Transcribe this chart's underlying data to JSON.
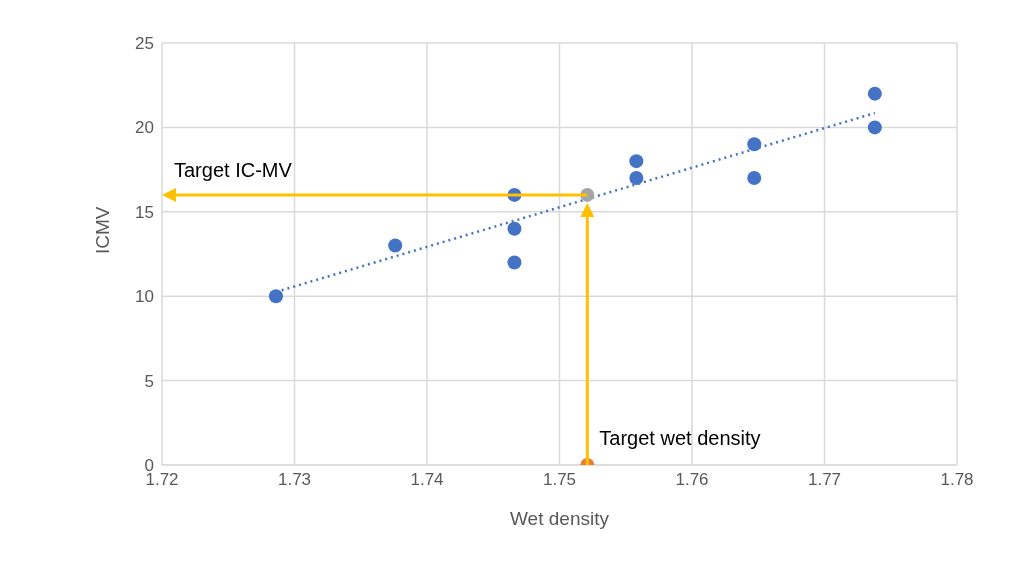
{
  "chart_data": {
    "type": "scatter",
    "xlabel": "Wet density",
    "ylabel": "ICMV",
    "xlim": [
      1.72,
      1.78
    ],
    "xticks": [
      1.72,
      1.73,
      1.74,
      1.75,
      1.76,
      1.77,
      1.78
    ],
    "ylim": [
      0,
      25
    ],
    "yticks": [
      0,
      5,
      10,
      15,
      20,
      25
    ],
    "grid": true,
    "marker": "circle",
    "series": [
      {
        "color": "#4472c4",
        "x": [
          1.7286,
          1.7376,
          1.7466,
          1.7466,
          1.7466,
          1.7558,
          1.7558,
          1.7647,
          1.7647,
          1.7738,
          1.7738
        ],
        "values": [
          10,
          13,
          16,
          14,
          12,
          18,
          17,
          19,
          17,
          22,
          20
        ]
      },
      {
        "color": "#a5a5a5",
        "x": [
          1.7521
        ],
        "values": [
          16
        ]
      },
      {
        "color": "#ed7d31",
        "x": [
          1.7521
        ],
        "values": [
          0
        ]
      },
      {
        "type": "line",
        "color": "#4472c4",
        "line_style": "dotted",
        "marker": "none",
        "x": [
          1.7286,
          1.7738
        ],
        "values": [
          10.25,
          20.85
        ]
      }
    ],
    "annotations": [
      "Target IC-MV",
      "Target wet density"
    ]
  }
}
